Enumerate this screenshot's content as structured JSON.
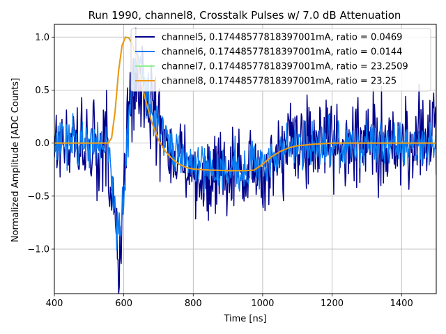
{
  "chart_data": {
    "type": "line",
    "title": "Run 1990, channel8, Crosstalk Pulses w/ 7.0 dB Attenuation",
    "xlabel": "Time [ns]",
    "ylabel": "Normalized Amplitude [ADC Counts]",
    "xlim": [
      400,
      1500
    ],
    "ylim": [
      -1.42,
      1.12
    ],
    "xticks": [
      400,
      600,
      800,
      1000,
      1200,
      1400
    ],
    "xtick_labels": [
      "400",
      "600",
      "800",
      "1000",
      "1200",
      "1400"
    ],
    "yticks": [
      -1.0,
      -0.5,
      0.0,
      0.5,
      1.0
    ],
    "ytick_labels": [
      "−1.0",
      "−0.5",
      "0.0",
      "0.5",
      "1.0"
    ],
    "grid": true,
    "legend_position": "top-right",
    "series": [
      {
        "name": "channel5, 0.17448577818397001mA, ratio = 0.0469",
        "color": "#00008b",
        "kind": "noisy",
        "x": [
          400,
          550,
          560,
          570,
          580,
          590,
          600,
          610,
          620,
          640,
          660,
          680,
          700,
          720,
          750,
          800,
          900,
          1000,
          1050,
          1100,
          1200,
          1300,
          1400,
          1500
        ],
        "y": [
          0.0,
          0.0,
          -0.3,
          -0.7,
          -1.0,
          -1.1,
          -0.4,
          0.1,
          0.4,
          0.6,
          0.5,
          0.3,
          0.15,
          0.0,
          -0.2,
          -0.3,
          -0.3,
          -0.25,
          -0.1,
          0.0,
          0.0,
          0.0,
          0.0,
          0.0
        ],
        "noise": 0.3
      },
      {
        "name": "channel6, 0.17448577818397001mA, ratio = 0.0144",
        "color": "#0a7af0",
        "kind": "noisy",
        "x": [
          400,
          550,
          560,
          570,
          580,
          590,
          600,
          610,
          620,
          630,
          640,
          660,
          680,
          700,
          720,
          760,
          800,
          900,
          1000,
          1050,
          1100,
          1200,
          1300,
          1400,
          1500
        ],
        "y": [
          0.0,
          0.0,
          -0.2,
          -0.5,
          -0.8,
          -0.9,
          -0.5,
          0.0,
          0.4,
          0.7,
          0.75,
          0.55,
          0.35,
          0.2,
          0.05,
          -0.15,
          -0.22,
          -0.25,
          -0.2,
          -0.08,
          0.0,
          0.0,
          0.0,
          0.0,
          0.0
        ],
        "noise": 0.16
      },
      {
        "name": "channel7, 0.17448577818397001mA, ratio = 23.2509",
        "color": "#90ee90",
        "kind": "smooth",
        "x": [
          400,
          555,
          565,
          575,
          585,
          595,
          605,
          615,
          625,
          635,
          645,
          660,
          680,
          700,
          720,
          740,
          760,
          780,
          800,
          850,
          900,
          950,
          975,
          1000,
          1025,
          1050,
          1075,
          1100,
          1150,
          1200,
          1300,
          1400,
          1500
        ],
        "y": [
          0.0,
          0.0,
          0.05,
          0.3,
          0.68,
          0.92,
          1.0,
          0.99,
          0.93,
          0.81,
          0.66,
          0.44,
          0.2,
          0.03,
          -0.08,
          -0.15,
          -0.2,
          -0.23,
          -0.245,
          -0.255,
          -0.26,
          -0.26,
          -0.255,
          -0.2,
          -0.13,
          -0.08,
          -0.045,
          -0.025,
          -0.01,
          0.0,
          0.0,
          0.0,
          0.0
        ]
      },
      {
        "name": "channel8, 0.17448577818397001mA, ratio = 23.25",
        "color": "#f0960f",
        "kind": "smooth",
        "x": [
          400,
          555,
          565,
          575,
          585,
          595,
          605,
          615,
          625,
          635,
          645,
          660,
          680,
          700,
          720,
          740,
          760,
          780,
          800,
          850,
          900,
          950,
          975,
          1000,
          1025,
          1050,
          1075,
          1100,
          1150,
          1200,
          1300,
          1400,
          1500
        ],
        "y": [
          0.0,
          0.0,
          0.05,
          0.3,
          0.68,
          0.92,
          1.0,
          0.99,
          0.93,
          0.81,
          0.66,
          0.44,
          0.2,
          0.03,
          -0.08,
          -0.15,
          -0.2,
          -0.23,
          -0.245,
          -0.255,
          -0.26,
          -0.26,
          -0.255,
          -0.2,
          -0.13,
          -0.08,
          -0.045,
          -0.025,
          -0.01,
          0.0,
          0.0,
          0.0,
          0.0
        ]
      }
    ]
  }
}
